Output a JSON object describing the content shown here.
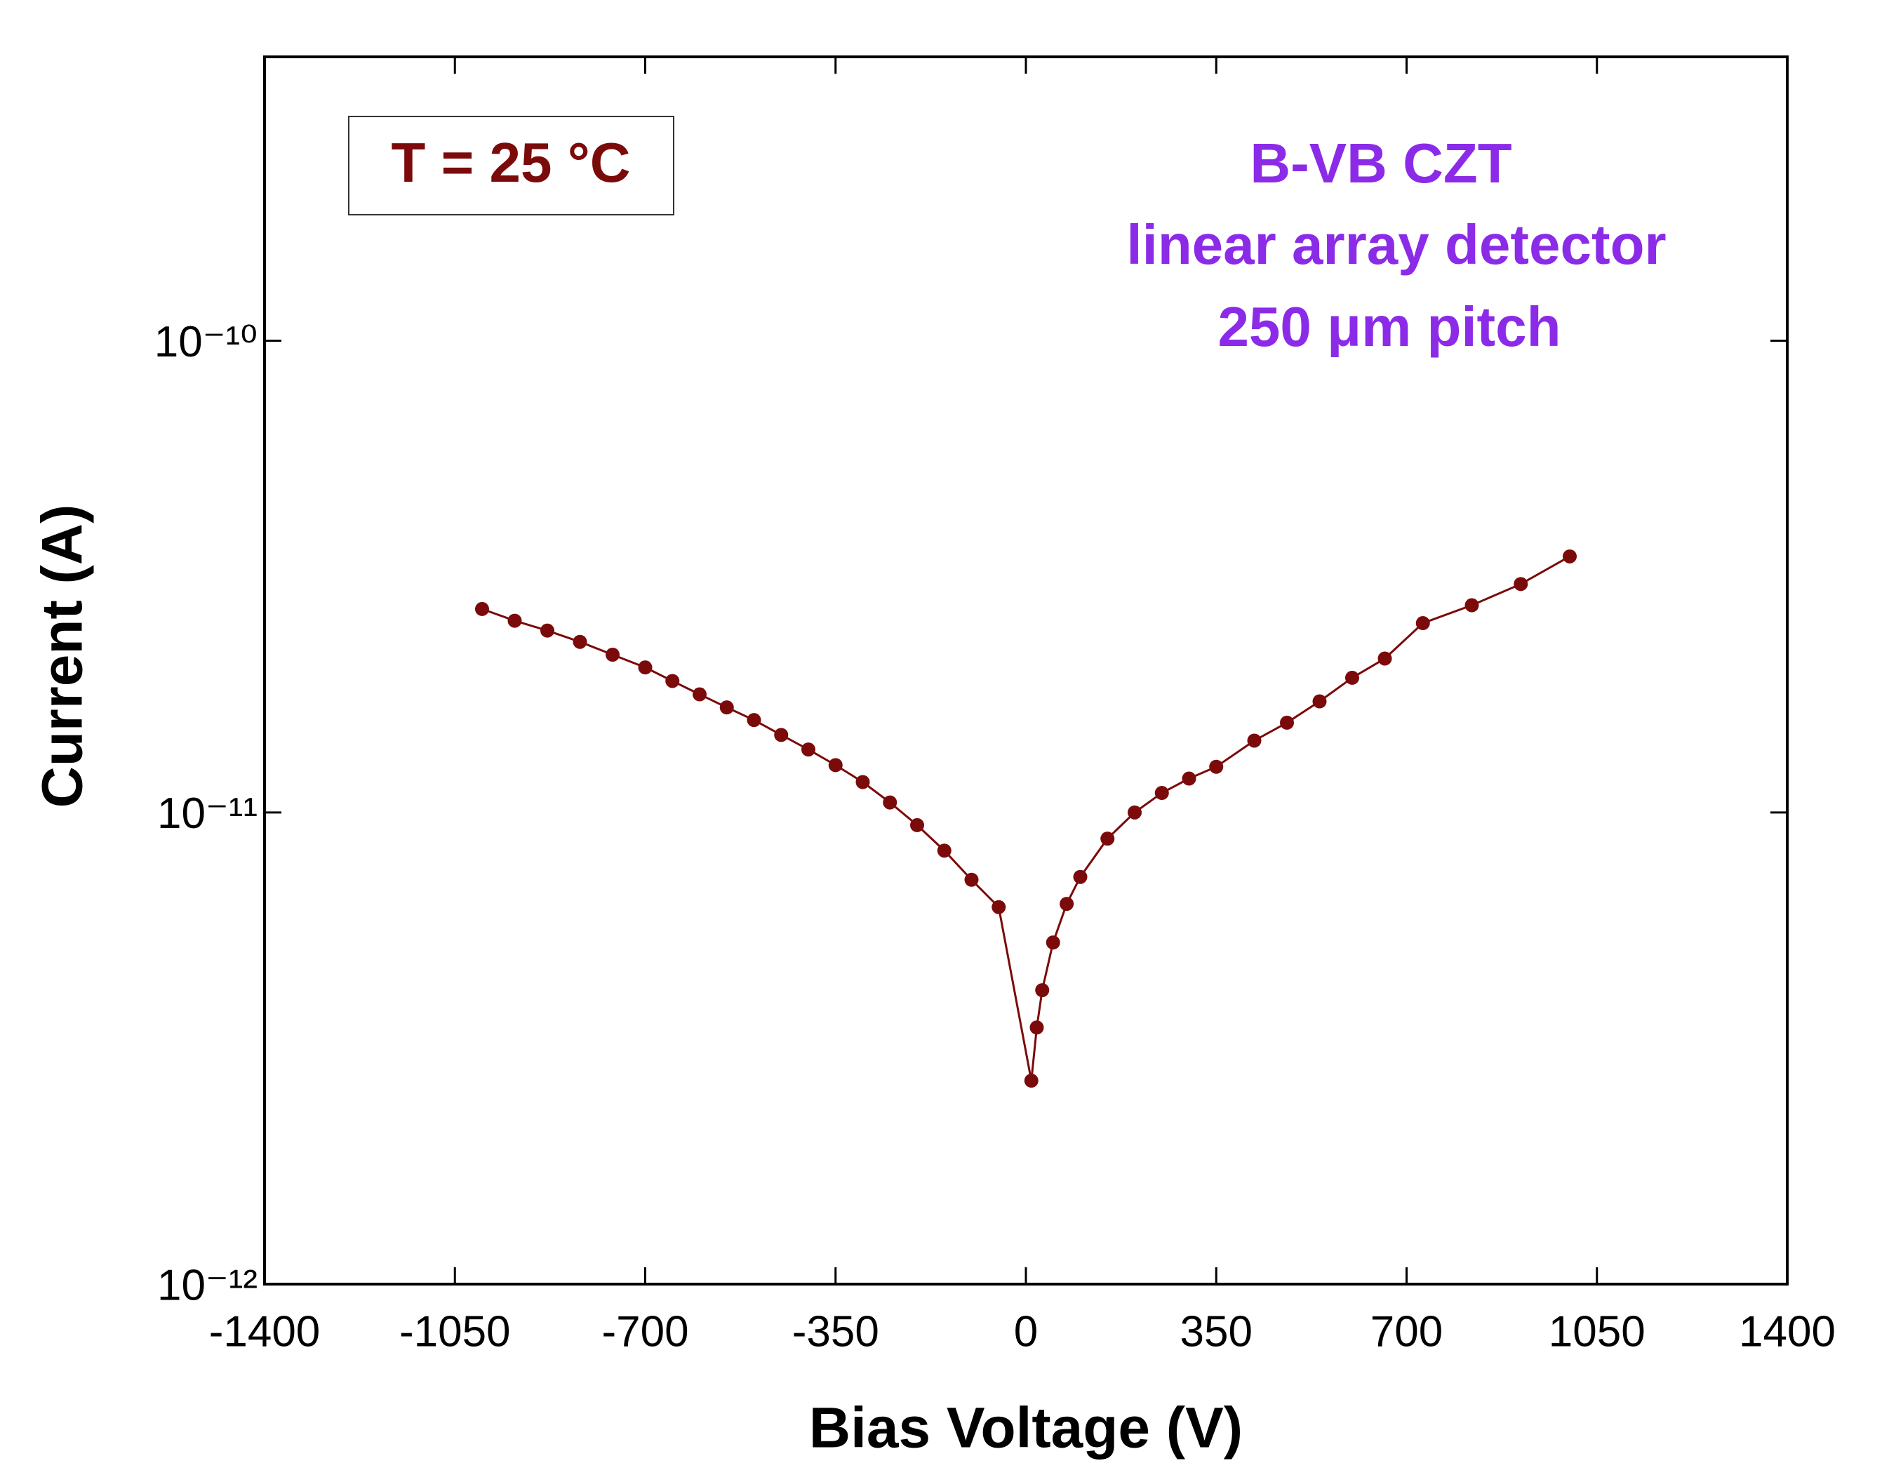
{
  "chart_data": {
    "type": "scatter-line",
    "xlabel": "Bias Voltage (V)",
    "ylabel": "Current (A)",
    "annotations": [
      "T = 25 °C",
      "B-VB CZT",
      "linear array detector",
      "250 μm pitch"
    ],
    "xlim": [
      -1400,
      1400
    ],
    "xticks": [
      -1400,
      -1050,
      -700,
      -350,
      0,
      350,
      700,
      1050,
      1400
    ],
    "ylim": [
      1e-12,
      4e-10
    ],
    "yscale": "log",
    "yticks": [
      {
        "value": 1e-12,
        "label": "10⁻¹²"
      },
      {
        "value": 1e-11,
        "label": "10⁻¹¹"
      },
      {
        "value": 1e-10,
        "label": "10⁻¹⁰"
      }
    ],
    "series": [
      {
        "color": "#7b0a0a",
        "x": [
          -1000,
          -940,
          -880,
          -820,
          -760,
          -700,
          -650,
          -600,
          -550,
          -500,
          -450,
          -400,
          -350,
          -300,
          -250,
          -200,
          -150,
          -100,
          -50,
          10,
          20,
          30,
          50,
          75,
          100,
          150,
          200,
          250,
          300,
          350,
          420,
          480,
          540,
          600,
          660,
          730,
          820,
          910,
          1000
        ],
        "values": [
          2.7e-11,
          2.55e-11,
          2.43e-11,
          2.3e-11,
          2.16e-11,
          2.03e-11,
          1.9e-11,
          1.78e-11,
          1.67e-11,
          1.57e-11,
          1.46e-11,
          1.36e-11,
          1.26e-11,
          1.16e-11,
          1.05e-11,
          9.4e-12,
          8.3e-12,
          7.2e-12,
          6.3e-12,
          2.7e-12,
          3.5e-12,
          4.2e-12,
          5.3e-12,
          6.4e-12,
          7.3e-12,
          8.8e-12,
          1e-11,
          1.1e-11,
          1.18e-11,
          1.25e-11,
          1.42e-11,
          1.55e-11,
          1.72e-11,
          1.93e-11,
          2.12e-11,
          2.52e-11,
          2.75e-11,
          3.05e-11,
          3.49e-11
        ]
      }
    ]
  }
}
